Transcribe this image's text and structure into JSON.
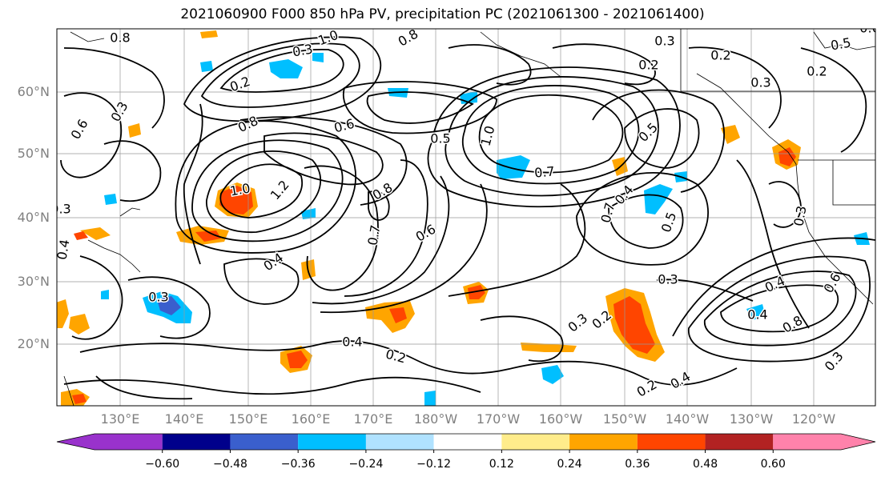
{
  "title": "2021060900 F000 850 hPa PV, precipitation PC (2021061300 - 2021061400)",
  "map": {
    "lat_labels": [
      "60°N",
      "50°N",
      "40°N",
      "30°N",
      "20°N"
    ],
    "lon_labels": [
      "130°E",
      "140°E",
      "150°E",
      "160°E",
      "170°E",
      "180°W",
      "170°W",
      "160°W",
      "150°W",
      "140°W",
      "130°W",
      "120°W"
    ],
    "contour_labels": [
      "0.8",
      "1.0",
      "0.2",
      "0.3",
      "0.6",
      "0.8",
      "0.6",
      "0.5",
      "1.0",
      "0.7",
      "0.3",
      "0.8",
      "0.3",
      "0.2",
      "0.2",
      "0.2",
      "0.3",
      "1.2",
      "1.0",
      "0.8",
      "0.6",
      "0.7",
      "0.5",
      "0.4",
      "0.4",
      "0.7",
      "0.5",
      "0.3",
      "0.3",
      "0.4",
      "0.3",
      "0.4",
      "0.2",
      "0.3",
      "0.2",
      "0.4",
      "0.8",
      "0.6",
      "0.4",
      "0.2",
      "0.3",
      "0.4",
      "0.3",
      "0.6",
      "0.5"
    ]
  },
  "colorbar": {
    "colors": [
      "#9932CC",
      "#00008B",
      "#3A5FCD",
      "#00BFFF",
      "#B0E2FF",
      "#FFFFFF",
      "#FFEC8B",
      "#FFA500",
      "#FF4500",
      "#B22222",
      "#FF82AB"
    ],
    "tick_labels": [
      "−0.60",
      "−0.48",
      "−0.36",
      "−0.24",
      "−0.12",
      "0.12",
      "0.24",
      "0.36",
      "0.48",
      "0.60"
    ]
  }
}
